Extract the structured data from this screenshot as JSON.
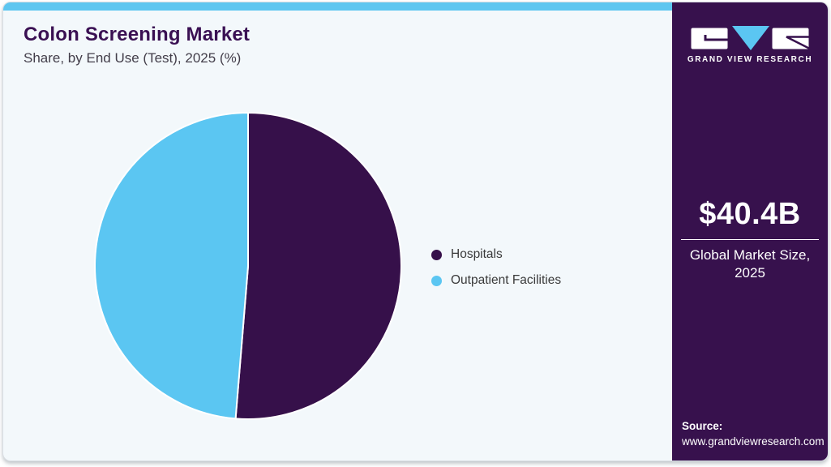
{
  "header": {
    "title": "Colon Screening Market",
    "subtitle": "Share, by End Use (Test), 2025 (%)"
  },
  "chart_data": {
    "type": "pie",
    "title": "Colon Screening Market Share, by End Use (Test), 2025 (%)",
    "categories": [
      "Hospitals",
      "Outpatient Facilities"
    ],
    "values": [
      51.3,
      48.7
    ],
    "colors": [
      "#36104A",
      "#5BC6F2"
    ],
    "units": "%",
    "start_angle_deg": 0,
    "legend_position": "right",
    "data_labels_shown": false
  },
  "sidebar": {
    "logo_text": "GRAND VIEW RESEARCH",
    "market_size_value": "$40.4B",
    "market_size_label_line1": "Global Market Size,",
    "market_size_label_line2": "2025",
    "source_label": "Source:",
    "source_url": "www.grandviewresearch.com"
  },
  "colors": {
    "accent_bar": "#5EC6F0",
    "card_background": "#F3F8FB",
    "sidebar_background": "#37114D",
    "title_text": "#3A1053",
    "hospitals_slice": "#36104A",
    "outpatient_slice": "#5BC6F2"
  }
}
